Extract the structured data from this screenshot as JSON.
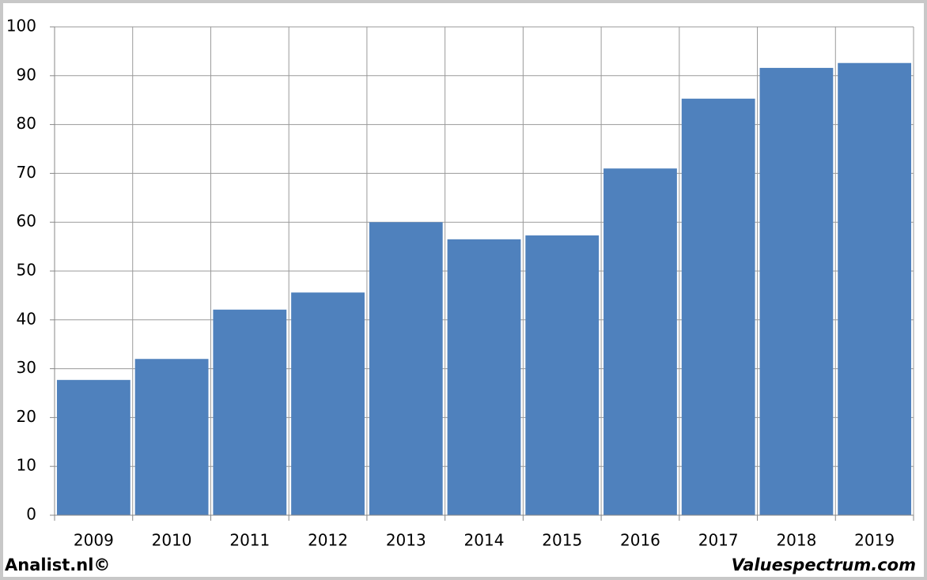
{
  "chart_data": {
    "type": "bar",
    "categories": [
      "2009",
      "2010",
      "2011",
      "2012",
      "2013",
      "2014",
      "2015",
      "2016",
      "2017",
      "2018",
      "2019"
    ],
    "values": [
      27.7,
      32.0,
      42.1,
      45.6,
      60.0,
      56.5,
      57.3,
      71.0,
      85.3,
      91.6,
      92.6
    ],
    "color": "#4f81bd",
    "ylim": [
      0,
      100
    ],
    "yticks": [
      0,
      10,
      20,
      30,
      40,
      50,
      60,
      70,
      80,
      90,
      100
    ],
    "grid": true,
    "credits": [
      "Analist.nl©",
      "Valuespectrum.com"
    ]
  }
}
